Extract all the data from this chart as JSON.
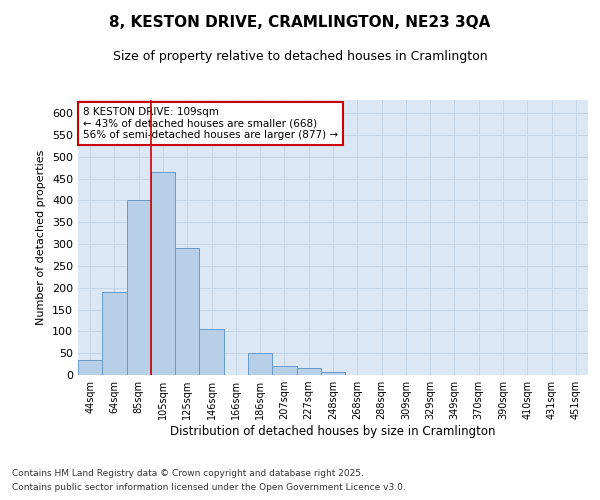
{
  "title1": "8, KESTON DRIVE, CRAMLINGTON, NE23 3QA",
  "title2": "Size of property relative to detached houses in Cramlington",
  "xlabel": "Distribution of detached houses by size in Cramlington",
  "ylabel": "Number of detached properties",
  "categories": [
    "44sqm",
    "64sqm",
    "85sqm",
    "105sqm",
    "125sqm",
    "146sqm",
    "166sqm",
    "186sqm",
    "207sqm",
    "227sqm",
    "248sqm",
    "268sqm",
    "288sqm",
    "309sqm",
    "329sqm",
    "349sqm",
    "370sqm",
    "390sqm",
    "410sqm",
    "431sqm",
    "451sqm"
  ],
  "values": [
    35,
    190,
    400,
    465,
    290,
    105,
    0,
    50,
    20,
    15,
    8,
    0,
    0,
    0,
    0,
    0,
    0,
    0,
    0,
    0,
    0
  ],
  "bar_color": "#b8cfe8",
  "bar_edge_color": "#6699cc",
  "grid_color": "#c5d5e8",
  "background_color": "#dce7f5",
  "vline_color": "#cc0000",
  "vline_x": 3,
  "annotation_text": "8 KESTON DRIVE: 109sqm\n← 43% of detached houses are smaller (668)\n56% of semi-detached houses are larger (877) →",
  "annotation_box_facecolor": "#ffffff",
  "annotation_box_edgecolor": "#cc0000",
  "ylim": [
    0,
    630
  ],
  "yticks": [
    0,
    50,
    100,
    150,
    200,
    250,
    300,
    350,
    400,
    450,
    500,
    550,
    600
  ],
  "footer1": "Contains HM Land Registry data © Crown copyright and database right 2025.",
  "footer2": "Contains public sector information licensed under the Open Government Licence v3.0."
}
